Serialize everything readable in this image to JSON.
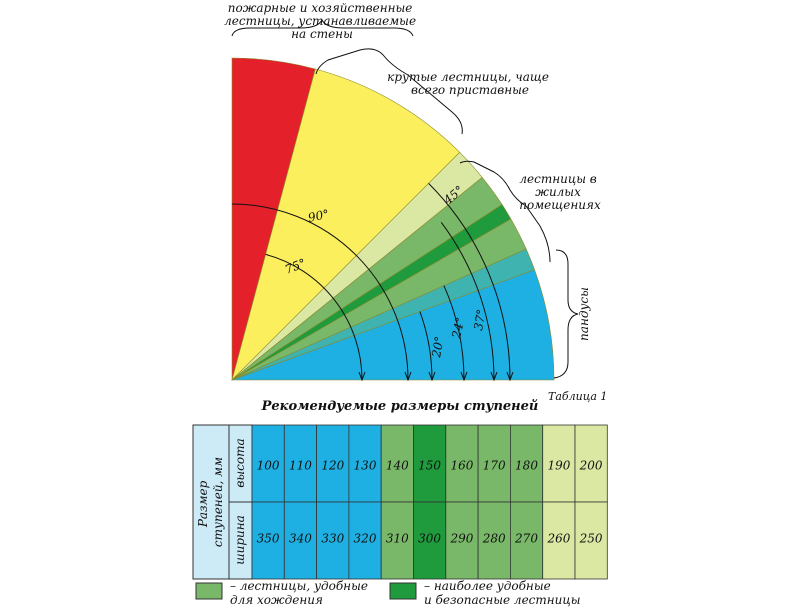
{
  "colors": {
    "red": "#e4202a",
    "yellow": "#fbef5e",
    "light_green": "#dbe8a3",
    "medium_green": "#79b868",
    "dark_green": "#1f9a3c",
    "teal": "#3fb3b0",
    "blue": "#1fb0e3",
    "table_header": "#cdeaf7"
  },
  "labels": {
    "fire_ladders": [
      "пожарные и хозяйственные",
      "лестницы, устанавливаемые",
      "на стены"
    ],
    "steep_ladders": [
      "крутые лестницы, чаще",
      "всего приставные"
    ],
    "residential": [
      "лестницы в",
      "жилых",
      "помещениях"
    ],
    "ramps": "пандусы",
    "angle_90": "90°",
    "angle_75": "75°",
    "angle_45": "45°",
    "angle_37": "37°",
    "angle_24": "24°",
    "angle_20": "20°"
  },
  "table_caption": "Таблица 1",
  "table_title": "Рекомендуемые размеры ступеней",
  "table": {
    "header_main": [
      "Размер",
      "ступеней, мм"
    ],
    "row_height_label": "высота",
    "row_width_label": "ширина",
    "heights": [
      "100",
      "110",
      "120",
      "130",
      "140",
      "150",
      "160",
      "170",
      "180",
      "190",
      "200"
    ],
    "widths": [
      "350",
      "340",
      "330",
      "320",
      "310",
      "300",
      "290",
      "280",
      "270",
      "260",
      "250"
    ],
    "column_colors": [
      "blue",
      "blue",
      "blue",
      "blue",
      "medium_green",
      "dark_green",
      "medium_green",
      "medium_green",
      "medium_green",
      "light_green",
      "light_green"
    ]
  },
  "legend": {
    "convenient": [
      "– лестницы, удобные",
      "для хождения"
    ],
    "safest": [
      "– наиболее удобные",
      "и безопасные лестницы"
    ]
  }
}
